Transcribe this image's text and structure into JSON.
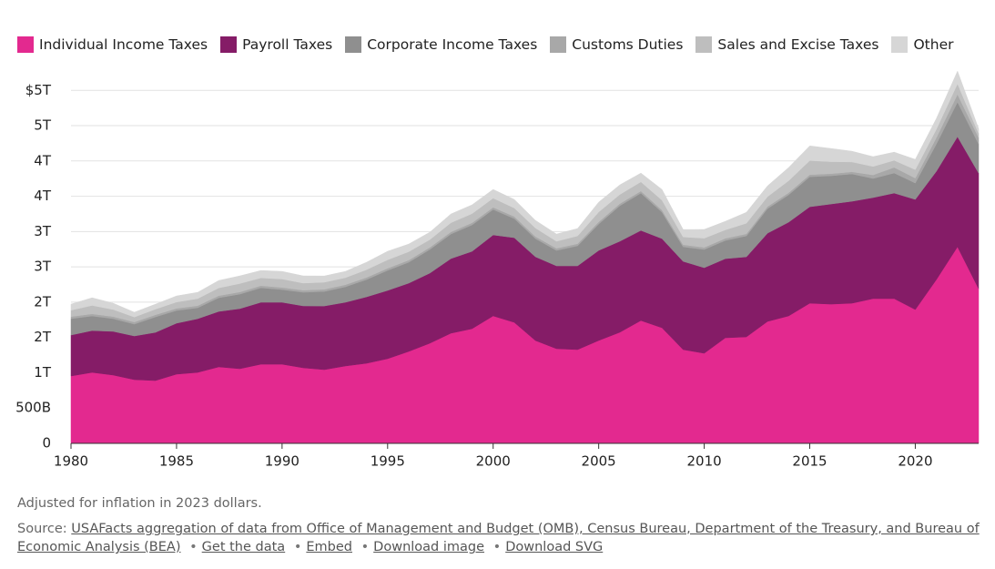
{
  "chart_data": {
    "type": "stacked-area",
    "x": [
      1980,
      1981,
      1982,
      1983,
      1984,
      1985,
      1986,
      1987,
      1988,
      1989,
      1990,
      1991,
      1992,
      1993,
      1994,
      1995,
      1996,
      1997,
      1998,
      1999,
      2000,
      2001,
      2002,
      2003,
      2004,
      2005,
      2006,
      2007,
      2008,
      2009,
      2010,
      2011,
      2012,
      2013,
      2014,
      2015,
      2016,
      2017,
      2018,
      2019,
      2020,
      2021,
      2022,
      2023
    ],
    "xlim": [
      1980,
      2023
    ],
    "xticks": [
      1980,
      1985,
      1990,
      1995,
      2000,
      2005,
      2010,
      2015,
      2020
    ],
    "ylim": [
      0,
      5300
    ],
    "yticks": [
      0,
      {
        "value": 500,
        "label": "500B"
      },
      {
        "value": 1000,
        "label": "1T"
      },
      {
        "value": 1500,
        "label": "2T"
      },
      {
        "value": 2000,
        "label": "2T"
      },
      {
        "value": 2500,
        "label": "3T"
      },
      {
        "value": 3000,
        "label": "3T"
      },
      {
        "value": 3500,
        "label": "4T"
      },
      {
        "value": 4000,
        "label": "4T"
      },
      {
        "value": 4500,
        "label": "5T"
      },
      {
        "value": 5000,
        "label": "$5T"
      }
    ],
    "grid": true,
    "legend": "top-left",
    "series": [
      {
        "name": "Individual Income Taxes",
        "color": "#e3298f",
        "values": [
          954,
          1005,
          967,
          902,
          889,
          980,
          1005,
          1083,
          1057,
          1121,
          1121,
          1070,
          1044,
          1096,
          1134,
          1199,
          1302,
          1418,
          1560,
          1624,
          1805,
          1714,
          1457,
          1341,
          1328,
          1457,
          1573,
          1740,
          1637,
          1328,
          1276,
          1495,
          1508,
          1727,
          1805,
          1985,
          1972,
          1985,
          2050,
          2050,
          1895,
          2320,
          2784,
          2191
        ]
      },
      {
        "name": "Payroll Taxes",
        "color": "#851c67",
        "values": [
          580,
          593,
          619,
          619,
          683,
          722,
          760,
          786,
          851,
          877,
          877,
          877,
          902,
          902,
          941,
          967,
          967,
          993,
          1057,
          1096,
          1147,
          1199,
          1186,
          1173,
          1186,
          1276,
          1289,
          1276,
          1263,
          1250,
          1212,
          1121,
          1134,
          1250,
          1328,
          1366,
          1418,
          1444,
          1431,
          1495,
          1560,
          1534,
          1560,
          1637
        ]
      },
      {
        "name": "Corporate Income Taxes",
        "color": "#8f8f8f",
        "values": [
          232,
          206,
          180,
          168,
          219,
          180,
          155,
          193,
          206,
          206,
          180,
          193,
          206,
          219,
          245,
          284,
          296,
          335,
          348,
          374,
          361,
          271,
          258,
          219,
          284,
          374,
          503,
          528,
          374,
          206,
          258,
          258,
          296,
          348,
          387,
          425,
          400,
          387,
          271,
          284,
          232,
          387,
          490,
          412
        ]
      },
      {
        "name": "Customs Duties",
        "color": "#a8a8a8",
        "values": [
          30,
          30,
          30,
          30,
          30,
          30,
          30,
          30,
          30,
          30,
          30,
          30,
          30,
          30,
          30,
          30,
          30,
          30,
          30,
          30,
          30,
          30,
          30,
          30,
          30,
          30,
          30,
          30,
          30,
          30,
          30,
          30,
          30,
          30,
          30,
          30,
          30,
          30,
          50,
          80,
          70,
          90,
          110,
          90
        ]
      },
      {
        "name": "Sales and Excise Taxes",
        "color": "#bebebe",
        "values": [
          90,
          120,
          100,
          70,
          80,
          90,
          100,
          110,
          120,
          110,
          120,
          100,
          100,
          100,
          110,
          120,
          120,
          110,
          130,
          130,
          130,
          120,
          120,
          100,
          110,
          140,
          130,
          130,
          140,
          110,
          130,
          120,
          150,
          140,
          170,
          200,
          170,
          140,
          120,
          100,
          120,
          120,
          150,
          60
        ]
      },
      {
        "name": "Other",
        "color": "#d6d6d6",
        "values": [
          86,
          108,
          89,
          68,
          70,
          86,
          89,
          105,
          108,
          105,
          108,
          102,
          89,
          89,
          105,
          121,
          108,
          105,
          124,
          124,
          124,
          121,
          108,
          102,
          105,
          139,
          136,
          124,
          152,
          105,
          124,
          121,
          155,
          152,
          187,
          208,
          187,
          152,
          139,
          116,
          145,
          151,
          178,
          69
        ]
      }
    ]
  },
  "footer": {
    "note": "Adjusted for inflation in 2023 dollars.",
    "source_label": "Source:",
    "links": [
      "USAFacts aggregation of data from Office of Management and Budget (OMB), Census Bureau, Department of the Treasury, and Bureau of Economic Analysis (BEA)",
      "Get the data",
      "Embed",
      "Download image",
      "Download SVG"
    ]
  }
}
